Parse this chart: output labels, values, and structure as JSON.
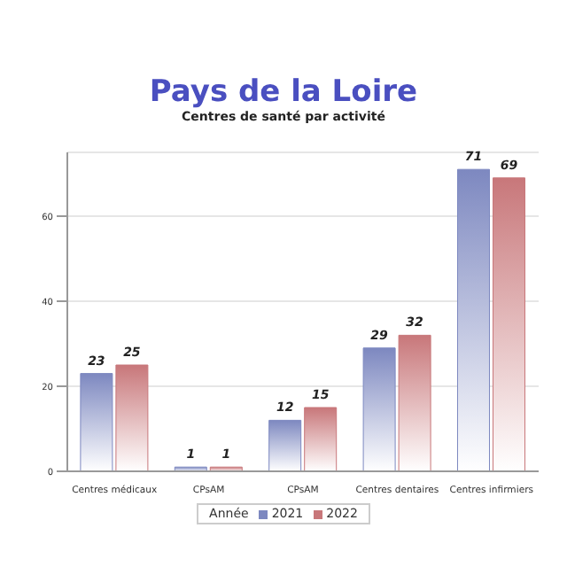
{
  "chart_data": {
    "type": "bar",
    "title": "Pays de la Loire",
    "subtitle": "Centres de santé par activité",
    "categories": [
      "Centres médicaux",
      "CPsAM",
      "CPsAM",
      "Centres dentaires",
      "Centres infirmiers"
    ],
    "series": [
      {
        "name": "2021",
        "color": "#7d88c0",
        "values": [
          23,
          1,
          12,
          29,
          71
        ]
      },
      {
        "name": "2022",
        "color": "#c8777a",
        "values": [
          25,
          1,
          15,
          32,
          69
        ]
      }
    ],
    "ylim": [
      0,
      75
    ],
    "yticks": [
      0,
      20,
      40,
      60
    ],
    "grid": "y",
    "data_labels": true,
    "legend": "bottom",
    "legend_title": "Année"
  }
}
